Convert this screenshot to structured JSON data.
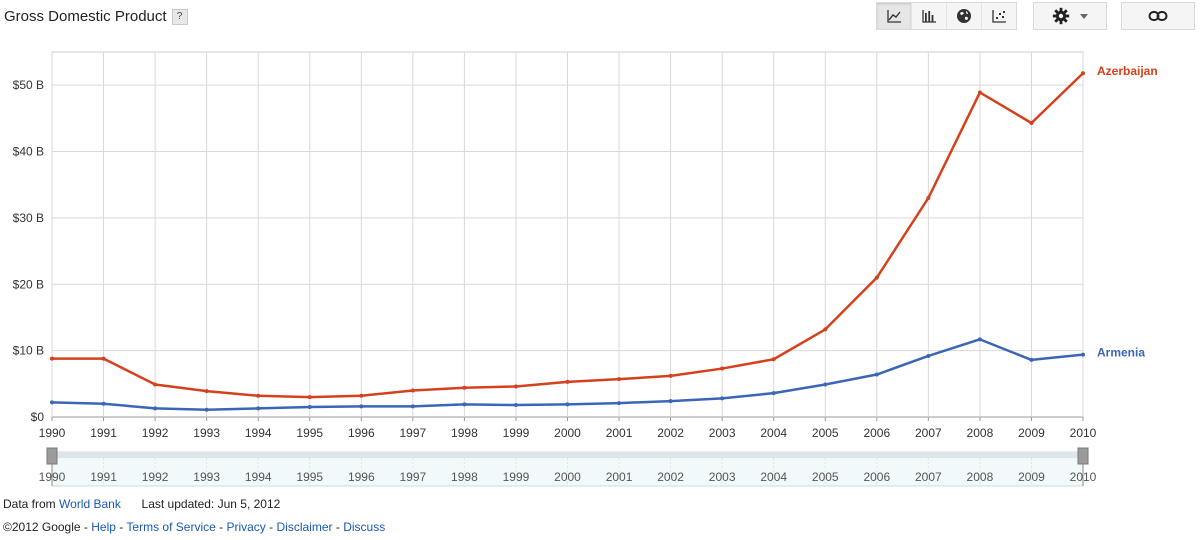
{
  "header": {
    "title": "Gross Domestic Product",
    "help_label": "?"
  },
  "toolbar": {
    "buttons": [
      {
        "name": "line-chart",
        "icon": "line-chart-icon",
        "active": true
      },
      {
        "name": "bar-chart",
        "icon": "bar-chart-icon",
        "active": false
      },
      {
        "name": "map",
        "icon": "globe-icon",
        "active": false
      },
      {
        "name": "bubble-chart",
        "icon": "scatter-chart-icon",
        "active": false
      }
    ],
    "settings_icon": "gear-icon",
    "link_icon": "link-icon"
  },
  "footer": {
    "data_from_label": "Data from",
    "data_source": "World Bank",
    "last_updated": "Last updated: Jun 5, 2012",
    "copyright": "©2012 Google",
    "links": [
      "Help",
      "Terms of Service",
      "Privacy",
      "Disclaimer",
      "Discuss"
    ]
  },
  "chart_data": {
    "type": "line",
    "title": "Gross Domestic Product",
    "x": [
      1990,
      1991,
      1992,
      1993,
      1994,
      1995,
      1996,
      1997,
      1998,
      1999,
      2000,
      2001,
      2002,
      2003,
      2004,
      2005,
      2006,
      2007,
      2008,
      2009,
      2010
    ],
    "yticks": [
      "$0",
      "$10 B",
      "$20 B",
      "$30 B",
      "$40 B",
      "$50 B"
    ],
    "ylim": [
      0,
      55
    ],
    "xlim": [
      1990,
      2010
    ],
    "grid": true,
    "legend": "inline-right",
    "series": [
      {
        "name": "Azerbaijan",
        "color": "#d4411c",
        "values": [
          8.8,
          8.8,
          4.9,
          3.9,
          3.2,
          3.0,
          3.2,
          4.0,
          4.4,
          4.6,
          5.3,
          5.7,
          6.2,
          7.3,
          8.7,
          13.2,
          21.0,
          33.0,
          48.9,
          44.3,
          51.8
        ]
      },
      {
        "name": "Armenia",
        "color": "#3b66b8",
        "values": [
          2.2,
          2.0,
          1.3,
          1.1,
          1.3,
          1.5,
          1.6,
          1.6,
          1.9,
          1.8,
          1.9,
          2.1,
          2.4,
          2.8,
          3.6,
          4.9,
          6.4,
          9.2,
          11.7,
          8.6,
          9.4
        ]
      }
    ],
    "range_slider": {
      "start": 1990,
      "end": 2010
    }
  }
}
